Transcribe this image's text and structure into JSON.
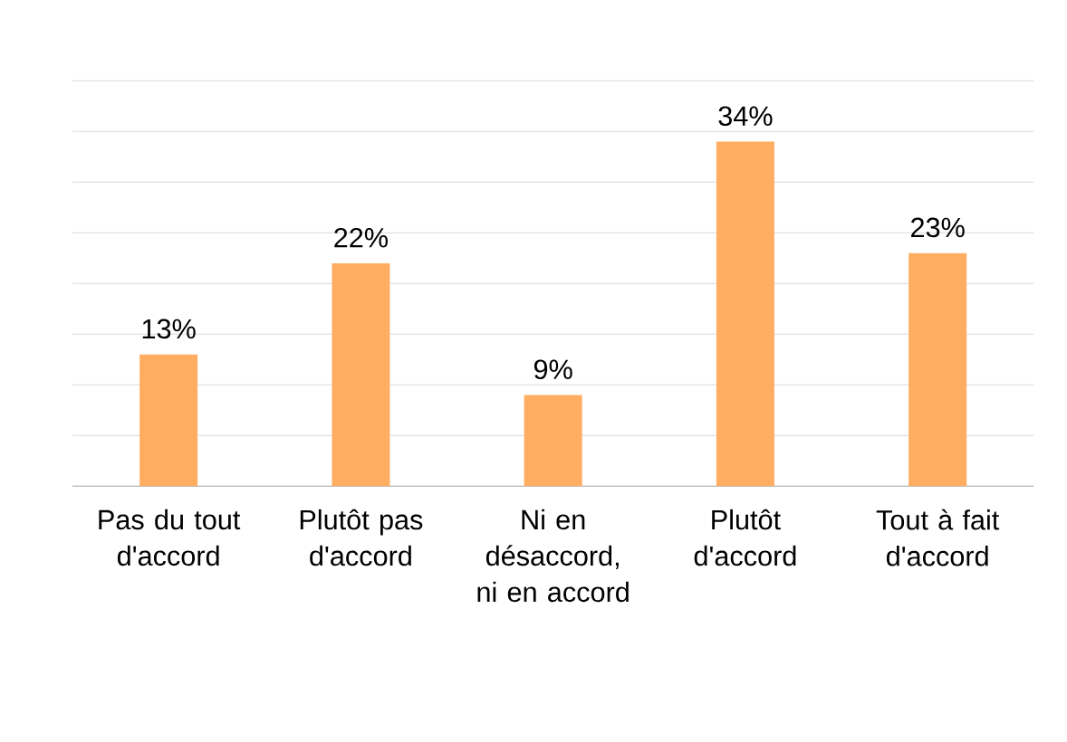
{
  "chart_data": {
    "type": "bar",
    "categories": [
      "Pas du tout d'accord",
      "Plutôt pas d'accord",
      "Ni en désaccord, ni en accord",
      "Plutôt d'accord",
      "Tout à fait d'accord"
    ],
    "values": [
      13,
      22,
      9,
      34,
      23
    ],
    "value_labels": [
      "13%",
      "22%",
      "9%",
      "34%",
      "23%"
    ],
    "color": "#ffad60",
    "ylim": [
      0,
      40
    ],
    "yticks": [
      {
        "value": 0,
        "label": null
      },
      {
        "value": 5,
        "label": null
      },
      {
        "value": 10,
        "label": null
      },
      {
        "value": 15,
        "label": null
      },
      {
        "value": 20,
        "label": null
      },
      {
        "value": 25,
        "label": null
      },
      {
        "value": 30,
        "label": null
      },
      {
        "value": 35,
        "label": null
      },
      {
        "value": 40,
        "label": null
      }
    ],
    "grid": "y",
    "tick_labels": "x"
  }
}
